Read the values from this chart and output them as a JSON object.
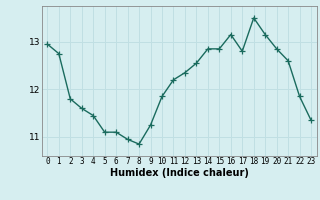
{
  "x": [
    0,
    1,
    2,
    3,
    4,
    5,
    6,
    7,
    8,
    9,
    10,
    11,
    12,
    13,
    14,
    15,
    16,
    17,
    18,
    19,
    20,
    21,
    22,
    23
  ],
  "y": [
    12.95,
    12.75,
    11.8,
    11.6,
    11.45,
    11.1,
    11.1,
    10.95,
    10.85,
    11.25,
    11.85,
    12.2,
    12.35,
    12.55,
    12.85,
    12.85,
    13.15,
    12.8,
    13.5,
    13.15,
    12.85,
    12.6,
    11.85,
    11.35
  ],
  "xlabel": "Humidex (Indice chaleur)",
  "ylim": [
    10.6,
    13.75
  ],
  "xlim": [
    -0.5,
    23.5
  ],
  "yticks": [
    11,
    12,
    13
  ],
  "xticks": [
    0,
    1,
    2,
    3,
    4,
    5,
    6,
    7,
    8,
    9,
    10,
    11,
    12,
    13,
    14,
    15,
    16,
    17,
    18,
    19,
    20,
    21,
    22,
    23
  ],
  "line_color": "#1a6b5e",
  "marker": "+",
  "marker_size": 4,
  "bg_color": "#d6eef0",
  "grid_color": "#c0dfe3",
  "axes_bg": "#d6eef0",
  "line_width": 1.0
}
